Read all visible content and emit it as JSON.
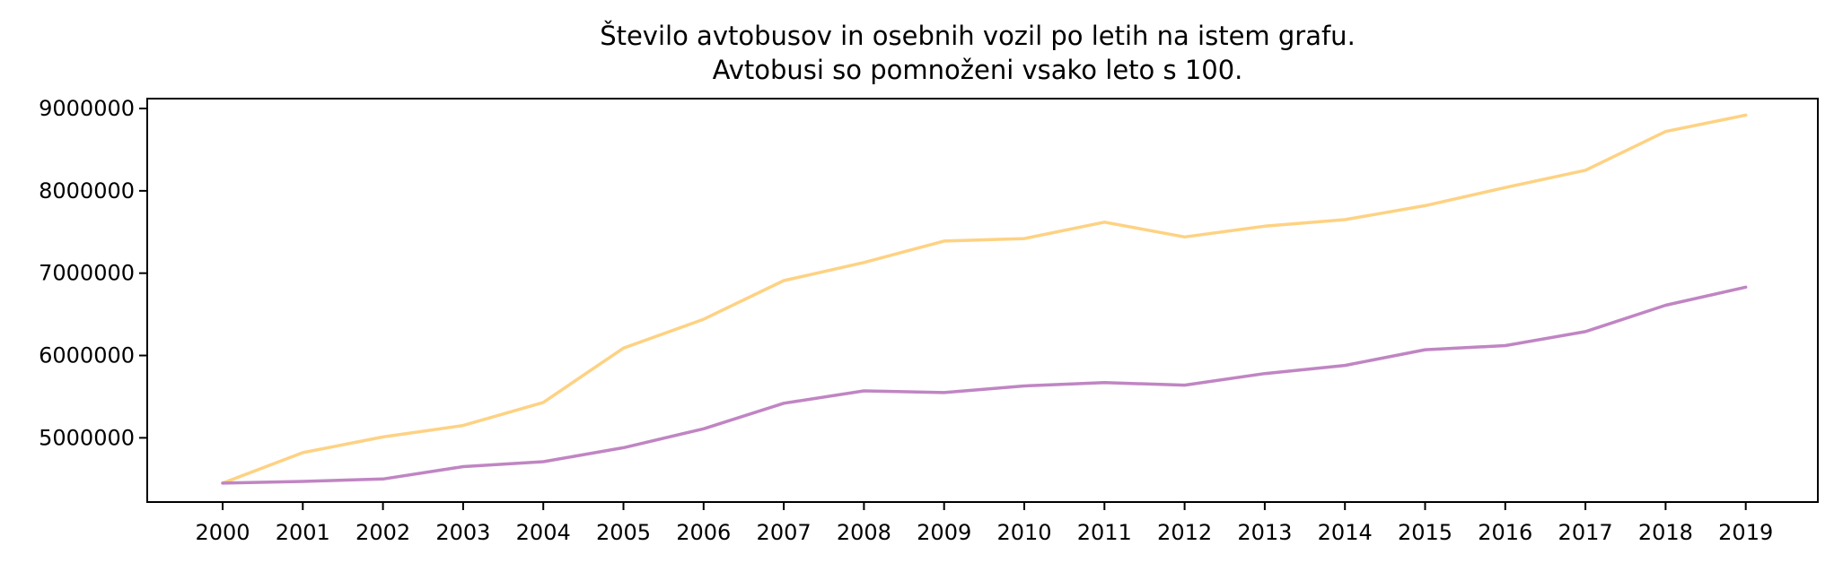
{
  "chart_data": {
    "type": "line",
    "title_lines": [
      "Število avtobusov in osebnih vozil po letih na istem grafu.",
      "Avtobusi so pomnoženi vsako leto s 100."
    ],
    "xlabel": "",
    "ylabel": "",
    "x": [
      "2000",
      "2001",
      "2002",
      "2003",
      "2004",
      "2005",
      "2006",
      "2007",
      "2008",
      "2009",
      "2010",
      "2011",
      "2012",
      "2013",
      "2014",
      "2015",
      "2016",
      "2017",
      "2018",
      "2019"
    ],
    "yticks": [
      "5000000",
      "6000000",
      "7000000",
      "8000000",
      "9000000"
    ],
    "ylim": [
      4220000,
      9120000
    ],
    "grid": false,
    "legend": "none",
    "series": [
      {
        "color": "#fed283",
        "values": [
          4450000,
          4820000,
          5010000,
          5150000,
          5430000,
          6090000,
          6440000,
          6910000,
          7130000,
          7390000,
          7420000,
          7620000,
          7440000,
          7570000,
          7650000,
          7820000,
          8040000,
          8250000,
          8720000,
          8920000
        ]
      },
      {
        "color": "#c085c3",
        "values": [
          4450000,
          4470000,
          4500000,
          4650000,
          4710000,
          4880000,
          5110000,
          5420000,
          5570000,
          5550000,
          5630000,
          5670000,
          5640000,
          5780000,
          5880000,
          6070000,
          6120000,
          6290000,
          6610000,
          6830000
        ]
      }
    ]
  }
}
